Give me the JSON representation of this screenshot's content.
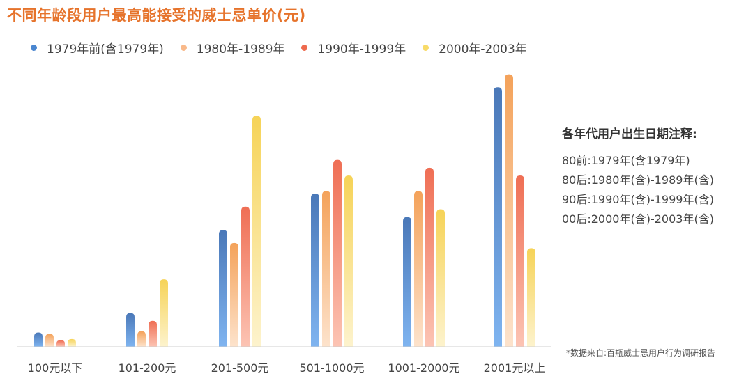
{
  "title": "不同年龄段用户最高能接受的威士忌单价(元)",
  "chart_data": {
    "type": "bar",
    "categories": [
      "100元以下",
      "101-200元",
      "201-500元",
      "501-1000元",
      "1001-2000元",
      "2001元以上"
    ],
    "series": [
      {
        "name": "1979年前(含1979年)",
        "color_top": "#4a78b8",
        "color_bottom": "#7fb4f0",
        "values": [
          5.5,
          13,
          45,
          59,
          50,
          100
        ]
      },
      {
        "name": "1980年-1989年",
        "color_top": "#f4a25a",
        "color_bottom": "#fde3cc",
        "values": [
          5,
          6,
          40,
          60,
          60,
          105
        ]
      },
      {
        "name": "1990年-1999年",
        "color_top": "#ef6e54",
        "color_bottom": "#fcc4b4",
        "values": [
          2.5,
          10,
          54,
          72,
          69,
          66
        ]
      },
      {
        "name": "2000年-2003年",
        "color_top": "#f6d357",
        "color_bottom": "#fdf3cd",
        "values": [
          3,
          26,
          89,
          66,
          53,
          38
        ]
      }
    ],
    "ylim": [
      0,
      110
    ],
    "grid": false,
    "legend_position": "top-left"
  },
  "legend_dot_colors": [
    "#4a86d0",
    "#f9b98a",
    "#ee6a4e",
    "#f8db68"
  ],
  "notes": {
    "title": "各年代用户出生日期注释:",
    "lines": [
      "80前:1979年(含1979年)",
      "80后:1980年(含)-1989年(含)",
      "90后:1990年(含)-1999年(含)",
      "00后:2000年(含)-2003年(含)"
    ]
  },
  "source": "*数据来自:百瓶威士忌用户行为调研报告"
}
